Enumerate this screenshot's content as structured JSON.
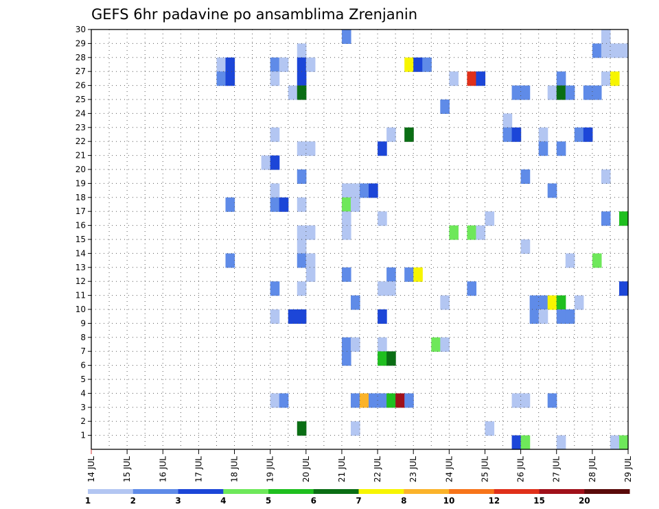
{
  "chart_data": {
    "type": "heatmap",
    "title": "GEFS 6hr padavine po ansamblima Zrenjanin",
    "x_ticks": [
      "14 JUL",
      "15 JUL",
      "16 JUL",
      "17 JUL",
      "18 JUL",
      "19 JUL",
      "20 JUL",
      "21 JUL",
      "22 JUL",
      "23 JUL",
      "24 JUL",
      "25 JUL",
      "26 JUL",
      "27 JUL",
      "28 JUL",
      "29 JUL"
    ],
    "y_ticks": [
      "1",
      "2",
      "3",
      "4",
      "5",
      "6",
      "7",
      "8",
      "9",
      "10",
      "11",
      "12",
      "13",
      "14",
      "15",
      "16",
      "17",
      "18",
      "19",
      "20",
      "21",
      "22",
      "23",
      "24",
      "25",
      "26",
      "27",
      "28",
      "29",
      "30"
    ],
    "xlim": [
      0,
      60
    ],
    "ylim": [
      0,
      30
    ],
    "x_unit": "6h steps from 14 JUL 00Z",
    "grid": true,
    "colorbar": {
      "labels": [
        "1",
        "2",
        "3",
        "4",
        "5",
        "6",
        "7",
        "8",
        "10",
        "12",
        "15",
        "20"
      ],
      "colors": [
        "#b3c6f2",
        "#5f8be8",
        "#1c46d8",
        "#6ee85a",
        "#1fbf1f",
        "#0a6e14",
        "#f7f500",
        "#fbb32a",
        "#f7741a",
        "#e0301a",
        "#a0101a",
        "#5a0a0a"
      ]
    },
    "cells": [
      {
        "x": 28,
        "y": 30,
        "c": 2
      },
      {
        "x": 57,
        "y": 30,
        "c": 1
      },
      {
        "x": 23,
        "y": 29,
        "c": 1
      },
      {
        "x": 56,
        "y": 29,
        "c": 2
      },
      {
        "x": 57,
        "y": 29,
        "c": 1
      },
      {
        "x": 58,
        "y": 29,
        "c": 1
      },
      {
        "x": 59,
        "y": 29,
        "c": 1
      },
      {
        "x": 14,
        "y": 28,
        "c": 1
      },
      {
        "x": 15,
        "y": 28,
        "c": 3
      },
      {
        "x": 20,
        "y": 28,
        "c": 2
      },
      {
        "x": 21,
        "y": 28,
        "c": 1
      },
      {
        "x": 23,
        "y": 28,
        "c": 3
      },
      {
        "x": 24,
        "y": 28,
        "c": 1
      },
      {
        "x": 35,
        "y": 28,
        "c": 7
      },
      {
        "x": 36,
        "y": 28,
        "c": 3
      },
      {
        "x": 37,
        "y": 28,
        "c": 2
      },
      {
        "x": 14,
        "y": 27,
        "c": 2
      },
      {
        "x": 15,
        "y": 27,
        "c": 3
      },
      {
        "x": 20,
        "y": 27,
        "c": 1
      },
      {
        "x": 23,
        "y": 27,
        "c": 3
      },
      {
        "x": 40,
        "y": 27,
        "c": 1
      },
      {
        "x": 42,
        "y": 27,
        "c": 10
      },
      {
        "x": 43,
        "y": 27,
        "c": 3
      },
      {
        "x": 52,
        "y": 27,
        "c": 2
      },
      {
        "x": 57,
        "y": 27,
        "c": 1
      },
      {
        "x": 58,
        "y": 27,
        "c": 7
      },
      {
        "x": 22,
        "y": 26,
        "c": 1
      },
      {
        "x": 23,
        "y": 26,
        "c": 6
      },
      {
        "x": 47,
        "y": 26,
        "c": 2
      },
      {
        "x": 48,
        "y": 26,
        "c": 2
      },
      {
        "x": 51,
        "y": 26,
        "c": 1
      },
      {
        "x": 52,
        "y": 26,
        "c": 6
      },
      {
        "x": 53,
        "y": 26,
        "c": 2
      },
      {
        "x": 55,
        "y": 26,
        "c": 2
      },
      {
        "x": 56,
        "y": 26,
        "c": 2
      },
      {
        "x": 39,
        "y": 25,
        "c": 2
      },
      {
        "x": 46,
        "y": 24,
        "c": 1
      },
      {
        "x": 20,
        "y": 23,
        "c": 1
      },
      {
        "x": 33,
        "y": 23,
        "c": 1
      },
      {
        "x": 35,
        "y": 23,
        "c": 6
      },
      {
        "x": 46,
        "y": 23,
        "c": 2
      },
      {
        "x": 47,
        "y": 23,
        "c": 3
      },
      {
        "x": 50,
        "y": 23,
        "c": 1
      },
      {
        "x": 54,
        "y": 23,
        "c": 2
      },
      {
        "x": 55,
        "y": 23,
        "c": 3
      },
      {
        "x": 23,
        "y": 22,
        "c": 1
      },
      {
        "x": 24,
        "y": 22,
        "c": 1
      },
      {
        "x": 32,
        "y": 22,
        "c": 3
      },
      {
        "x": 50,
        "y": 22,
        "c": 2
      },
      {
        "x": 52,
        "y": 22,
        "c": 2
      },
      {
        "x": 19,
        "y": 21,
        "c": 1
      },
      {
        "x": 20,
        "y": 21,
        "c": 3
      },
      {
        "x": 23,
        "y": 20,
        "c": 2
      },
      {
        "x": 48,
        "y": 20,
        "c": 2
      },
      {
        "x": 57,
        "y": 20,
        "c": 1
      },
      {
        "x": 20,
        "y": 19,
        "c": 1
      },
      {
        "x": 28,
        "y": 19,
        "c": 1
      },
      {
        "x": 29,
        "y": 19,
        "c": 1
      },
      {
        "x": 30,
        "y": 19,
        "c": 2
      },
      {
        "x": 31,
        "y": 19,
        "c": 3
      },
      {
        "x": 51,
        "y": 19,
        "c": 2
      },
      {
        "x": 15,
        "y": 18,
        "c": 2
      },
      {
        "x": 20,
        "y": 18,
        "c": 2
      },
      {
        "x": 21,
        "y": 18,
        "c": 3
      },
      {
        "x": 23,
        "y": 18,
        "c": 1
      },
      {
        "x": 28,
        "y": 18,
        "c": 4
      },
      {
        "x": 29,
        "y": 18,
        "c": 1
      },
      {
        "x": 28,
        "y": 17,
        "c": 1
      },
      {
        "x": 32,
        "y": 17,
        "c": 1
      },
      {
        "x": 44,
        "y": 17,
        "c": 1
      },
      {
        "x": 57,
        "y": 17,
        "c": 2
      },
      {
        "x": 59,
        "y": 17,
        "c": 5
      },
      {
        "x": 23,
        "y": 16,
        "c": 1
      },
      {
        "x": 24,
        "y": 16,
        "c": 1
      },
      {
        "x": 28,
        "y": 16,
        "c": 1
      },
      {
        "x": 40,
        "y": 16,
        "c": 4
      },
      {
        "x": 42,
        "y": 16,
        "c": 4
      },
      {
        "x": 43,
        "y": 16,
        "c": 1
      },
      {
        "x": 23,
        "y": 15,
        "c": 1
      },
      {
        "x": 48,
        "y": 15,
        "c": 1
      },
      {
        "x": 15,
        "y": 14,
        "c": 2
      },
      {
        "x": 23,
        "y": 14,
        "c": 2
      },
      {
        "x": 24,
        "y": 14,
        "c": 1
      },
      {
        "x": 53,
        "y": 14,
        "c": 1
      },
      {
        "x": 56,
        "y": 14,
        "c": 4
      },
      {
        "x": 24,
        "y": 13,
        "c": 1
      },
      {
        "x": 28,
        "y": 13,
        "c": 2
      },
      {
        "x": 33,
        "y": 13,
        "c": 2
      },
      {
        "x": 35,
        "y": 13,
        "c": 2
      },
      {
        "x": 36,
        "y": 13,
        "c": 7
      },
      {
        "x": 20,
        "y": 12,
        "c": 2
      },
      {
        "x": 23,
        "y": 12,
        "c": 1
      },
      {
        "x": 32,
        "y": 12,
        "c": 1
      },
      {
        "x": 33,
        "y": 12,
        "c": 1
      },
      {
        "x": 42,
        "y": 12,
        "c": 2
      },
      {
        "x": 59,
        "y": 12,
        "c": 3
      },
      {
        "x": 29,
        "y": 11,
        "c": 2
      },
      {
        "x": 39,
        "y": 11,
        "c": 1
      },
      {
        "x": 49,
        "y": 11,
        "c": 2
      },
      {
        "x": 50,
        "y": 11,
        "c": 2
      },
      {
        "x": 51,
        "y": 11,
        "c": 7
      },
      {
        "x": 52,
        "y": 11,
        "c": 5
      },
      {
        "x": 54,
        "y": 11,
        "c": 1
      },
      {
        "x": 20,
        "y": 10,
        "c": 1
      },
      {
        "x": 22,
        "y": 10,
        "c": 3
      },
      {
        "x": 23,
        "y": 10,
        "c": 3
      },
      {
        "x": 32,
        "y": 10,
        "c": 3
      },
      {
        "x": 49,
        "y": 10,
        "c": 2
      },
      {
        "x": 50,
        "y": 10,
        "c": 1
      },
      {
        "x": 52,
        "y": 10,
        "c": 2
      },
      {
        "x": 53,
        "y": 10,
        "c": 2
      },
      {
        "x": 28,
        "y": 8,
        "c": 2
      },
      {
        "x": 29,
        "y": 8,
        "c": 1
      },
      {
        "x": 32,
        "y": 8,
        "c": 1
      },
      {
        "x": 38,
        "y": 8,
        "c": 4
      },
      {
        "x": 39,
        "y": 8,
        "c": 1
      },
      {
        "x": 28,
        "y": 7,
        "c": 2
      },
      {
        "x": 32,
        "y": 7,
        "c": 5
      },
      {
        "x": 33,
        "y": 7,
        "c": 6
      },
      {
        "x": 20,
        "y": 4,
        "c": 1
      },
      {
        "x": 21,
        "y": 4,
        "c": 2
      },
      {
        "x": 29,
        "y": 4,
        "c": 2
      },
      {
        "x": 30,
        "y": 4,
        "c": 8
      },
      {
        "x": 31,
        "y": 4,
        "c": 2
      },
      {
        "x": 32,
        "y": 4,
        "c": 2
      },
      {
        "x": 33,
        "y": 4,
        "c": 5
      },
      {
        "x": 34,
        "y": 4,
        "c": 11
      },
      {
        "x": 35,
        "y": 4,
        "c": 2
      },
      {
        "x": 47,
        "y": 4,
        "c": 1
      },
      {
        "x": 48,
        "y": 4,
        "c": 1
      },
      {
        "x": 51,
        "y": 4,
        "c": 2
      },
      {
        "x": 23,
        "y": 2,
        "c": 6
      },
      {
        "x": 29,
        "y": 2,
        "c": 1
      },
      {
        "x": 44,
        "y": 2,
        "c": 1
      },
      {
        "x": 47,
        "y": 1,
        "c": 3
      },
      {
        "x": 48,
        "y": 1,
        "c": 4
      },
      {
        "x": 52,
        "y": 1,
        "c": 1
      },
      {
        "x": 58,
        "y": 1,
        "c": 1
      },
      {
        "x": 59,
        "y": 1,
        "c": 4
      }
    ]
  }
}
